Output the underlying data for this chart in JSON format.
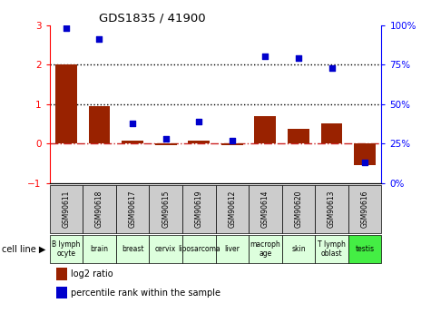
{
  "title": "GDS1835 / 41900",
  "samples": [
    "GSM90611",
    "GSM90618",
    "GSM90617",
    "GSM90615",
    "GSM90619",
    "GSM90612",
    "GSM90614",
    "GSM90620",
    "GSM90613",
    "GSM90616"
  ],
  "cell_lines": [
    "B lymph\nocyte",
    "brain",
    "breast",
    "cervix",
    "liposarcoma",
    "liver",
    "macroph\nage",
    "skin",
    "T lymph\noblast",
    "testis"
  ],
  "cell_line_colors": [
    "#ddffdd",
    "#ddffdd",
    "#ddffdd",
    "#ddffdd",
    "#ddffdd",
    "#ddffdd",
    "#ddffdd",
    "#ddffdd",
    "#ddffdd",
    "#44ee44"
  ],
  "log2_ratio": [
    2.0,
    0.95,
    0.07,
    -0.03,
    0.08,
    -0.03,
    0.7,
    0.38,
    0.5,
    -0.55
  ],
  "percentile_rank": [
    98,
    91,
    38,
    28,
    39,
    27,
    80,
    79,
    73,
    13
  ],
  "ylim_left": [
    -1,
    3
  ],
  "ylim_right": [
    0,
    100
  ],
  "bar_color": "#992200",
  "dot_color": "#0000CC",
  "hline_color": "#CC2222",
  "legend_bar": "log2 ratio",
  "legend_dot": "percentile rank within the sample",
  "cell_line_label": "cell line"
}
